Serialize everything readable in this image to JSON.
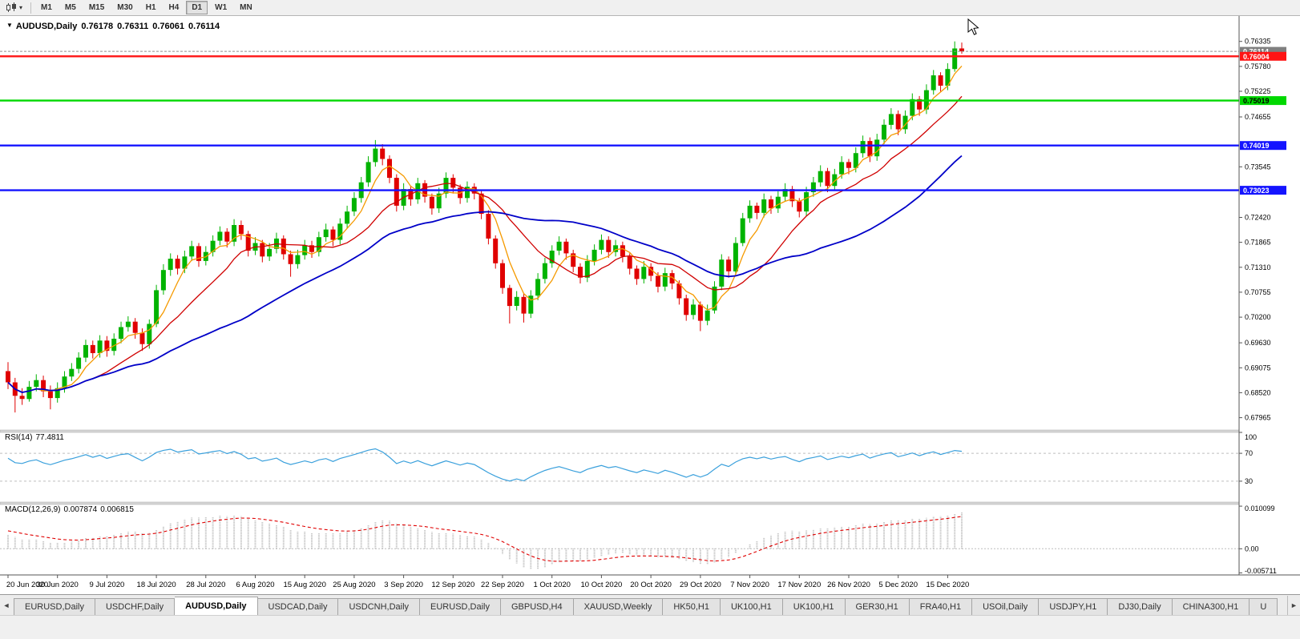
{
  "toolbar": {
    "chart_type_icon": "candlestick-chart-icon",
    "timeframes": [
      "M1",
      "M5",
      "M15",
      "M30",
      "H1",
      "H4",
      "D1",
      "W1",
      "MN"
    ],
    "active_timeframe": "D1"
  },
  "chart": {
    "title": {
      "symbol": "AUDUSD,Daily",
      "open": "0.76178",
      "high": "0.76311",
      "low": "0.76061",
      "close": "0.76114"
    },
    "bid_price": 0.76114,
    "price_axis_ticks": [
      "0.76335",
      "0.75780",
      "0.75225",
      "0.74655",
      "0.73545",
      "0.72420",
      "0.71865",
      "0.71310",
      "0.70755",
      "0.70200",
      "0.69630",
      "0.69075",
      "0.68520",
      "0.67965"
    ],
    "price_badges": [
      {
        "value": "0.76114",
        "color": "#7f7f7f",
        "text_color": "#ffffff",
        "kind": "bid-price"
      },
      {
        "value": "0.76004",
        "color": "#ff1414",
        "text_color": "#ffffff",
        "kind": "resistance-line"
      },
      {
        "value": "0.75019",
        "color": "#00d800",
        "text_color": "#000000",
        "kind": "support-line"
      },
      {
        "value": "0.74019",
        "color": "#1414ff",
        "text_color": "#ffffff",
        "kind": "support-line"
      },
      {
        "value": "0.73023",
        "color": "#1414ff",
        "text_color": "#ffffff",
        "kind": "support-line"
      }
    ],
    "hlines": [
      {
        "price": 0.76004,
        "color": "#ff1414"
      },
      {
        "price": 0.75019,
        "color": "#00d800"
      },
      {
        "price": 0.74019,
        "color": "#1414ff"
      },
      {
        "price": 0.73023,
        "color": "#1414ff"
      }
    ],
    "time_axis": [
      "20 Jun 2020",
      "30 Jun 2020",
      "9 Jul 2020",
      "18 Jul 2020",
      "28 Jul 2020",
      "6 Aug 2020",
      "15 Aug 2020",
      "25 Aug 2020",
      "3 Sep 2020",
      "12 Sep 2020",
      "22 Sep 2020",
      "1 Oct 2020",
      "10 Oct 2020",
      "20 Oct 2020",
      "29 Oct 2020",
      "7 Nov 2020",
      "17 Nov 2020",
      "26 Nov 2020",
      "5 Dec 2020",
      "15 Dec 2020"
    ]
  },
  "indicators": {
    "rsi": {
      "name": "RSI(14)",
      "value": "77.4811",
      "period": 14,
      "levels": [
        "100",
        "70",
        "30"
      ],
      "color": "#3aa0dc"
    },
    "macd": {
      "name": "MACD(12,26,9)",
      "main_value": "0.007874",
      "signal_value": "0.006815",
      "axis_labels": [
        "0.010099",
        "0.00",
        "-0.005711"
      ],
      "histogram_color": "#b8b8b8",
      "signal_color": "#e00000"
    }
  },
  "chart_data": {
    "type": "candlestick",
    "symbol": "AUDUSD",
    "timeframe": "Daily",
    "x_range": [
      "20 Jun 2020",
      "15 Dec 2020"
    ],
    "price_range_top": 0.769,
    "price_range_bottom": 0.6769,
    "up_color": "#00b300",
    "down_color": "#e00000",
    "moving_averages": [
      {
        "name": "fast",
        "period": 5,
        "color": "#f59a00"
      },
      {
        "name": "medium",
        "period": 13,
        "color": "#d00000"
      },
      {
        "name": "slow",
        "period": 34,
        "color": "#0000c8"
      }
    ],
    "candles": [
      [
        0.69,
        0.692,
        0.686,
        0.6875
      ],
      [
        0.6875,
        0.6885,
        0.6808,
        0.6845
      ],
      [
        0.6845,
        0.6862,
        0.6825,
        0.6838
      ],
      [
        0.6838,
        0.6878,
        0.6832,
        0.6865
      ],
      [
        0.6865,
        0.6893,
        0.6855,
        0.688
      ],
      [
        0.688,
        0.689,
        0.6842,
        0.6855
      ],
      [
        0.6855,
        0.6868,
        0.6815,
        0.684
      ],
      [
        0.684,
        0.6875,
        0.683,
        0.6862
      ],
      [
        0.6862,
        0.69,
        0.6852,
        0.6888
      ],
      [
        0.6888,
        0.6918,
        0.6878,
        0.6905
      ],
      [
        0.6905,
        0.6942,
        0.6895,
        0.693
      ],
      [
        0.693,
        0.697,
        0.692,
        0.6958
      ],
      [
        0.6958,
        0.6968,
        0.6928,
        0.694
      ],
      [
        0.694,
        0.698,
        0.693,
        0.6968
      ],
      [
        0.6968,
        0.6978,
        0.6932,
        0.6945
      ],
      [
        0.6945,
        0.6984,
        0.6935,
        0.6972
      ],
      [
        0.6972,
        0.701,
        0.6962,
        0.6998
      ],
      [
        0.6998,
        0.7022,
        0.6988,
        0.701
      ],
      [
        0.701,
        0.7018,
        0.6972,
        0.6985
      ],
      [
        0.6985,
        0.6995,
        0.6945,
        0.696
      ],
      [
        0.696,
        0.7015,
        0.695,
        0.7005
      ],
      [
        0.7005,
        0.7092,
        0.6998,
        0.708
      ],
      [
        0.708,
        0.7138,
        0.707,
        0.7125
      ],
      [
        0.7125,
        0.7162,
        0.7112,
        0.715
      ],
      [
        0.715,
        0.7158,
        0.7115,
        0.7128
      ],
      [
        0.7128,
        0.7168,
        0.7118,
        0.7155
      ],
      [
        0.7155,
        0.719,
        0.7145,
        0.7178
      ],
      [
        0.7178,
        0.7185,
        0.7132,
        0.7145
      ],
      [
        0.7145,
        0.7178,
        0.7135,
        0.7165
      ],
      [
        0.7165,
        0.7202,
        0.7155,
        0.719
      ],
      [
        0.719,
        0.7222,
        0.718,
        0.721
      ],
      [
        0.721,
        0.7218,
        0.7175,
        0.7188
      ],
      [
        0.7188,
        0.7238,
        0.7178,
        0.7225
      ],
      [
        0.7225,
        0.7235,
        0.7192,
        0.7205
      ],
      [
        0.7205,
        0.7212,
        0.7155,
        0.7168
      ],
      [
        0.7168,
        0.7198,
        0.7158,
        0.7185
      ],
      [
        0.7185,
        0.7192,
        0.7142,
        0.7155
      ],
      [
        0.7155,
        0.7185,
        0.7145,
        0.7172
      ],
      [
        0.7172,
        0.7208,
        0.7162,
        0.7195
      ],
      [
        0.7195,
        0.7202,
        0.7148,
        0.716
      ],
      [
        0.716,
        0.7168,
        0.711,
        0.7138
      ],
      [
        0.7138,
        0.717,
        0.7128,
        0.7158
      ],
      [
        0.7158,
        0.7192,
        0.7148,
        0.718
      ],
      [
        0.718,
        0.719,
        0.7152,
        0.7165
      ],
      [
        0.7165,
        0.721,
        0.7155,
        0.7198
      ],
      [
        0.7198,
        0.7228,
        0.7188,
        0.7215
      ],
      [
        0.7215,
        0.7222,
        0.7178,
        0.7192
      ],
      [
        0.7192,
        0.724,
        0.7182,
        0.7228
      ],
      [
        0.7228,
        0.7268,
        0.7218,
        0.7255
      ],
      [
        0.7255,
        0.7298,
        0.7245,
        0.7285
      ],
      [
        0.7285,
        0.7332,
        0.7275,
        0.732
      ],
      [
        0.732,
        0.7378,
        0.731,
        0.7365
      ],
      [
        0.7365,
        0.7414,
        0.7355,
        0.7395
      ],
      [
        0.7395,
        0.7405,
        0.7358,
        0.7372
      ],
      [
        0.7372,
        0.738,
        0.7318,
        0.733
      ],
      [
        0.733,
        0.7338,
        0.7255,
        0.7268
      ],
      [
        0.7268,
        0.7318,
        0.7258,
        0.7305
      ],
      [
        0.7305,
        0.7312,
        0.7268,
        0.7282
      ],
      [
        0.7282,
        0.733,
        0.7272,
        0.7318
      ],
      [
        0.7318,
        0.7325,
        0.7275,
        0.7288
      ],
      [
        0.7288,
        0.7295,
        0.7248,
        0.7262
      ],
      [
        0.7262,
        0.7308,
        0.7252,
        0.7295
      ],
      [
        0.7295,
        0.7342,
        0.7285,
        0.733
      ],
      [
        0.733,
        0.7338,
        0.7295,
        0.7308
      ],
      [
        0.7308,
        0.7315,
        0.7272,
        0.7285
      ],
      [
        0.7285,
        0.7322,
        0.7275,
        0.731
      ],
      [
        0.731,
        0.7318,
        0.7282,
        0.7295
      ],
      [
        0.7295,
        0.7302,
        0.7238,
        0.725
      ],
      [
        0.725,
        0.7258,
        0.7182,
        0.7195
      ],
      [
        0.7195,
        0.7202,
        0.7128,
        0.714
      ],
      [
        0.714,
        0.7148,
        0.7072,
        0.7085
      ],
      [
        0.7085,
        0.7092,
        0.7006,
        0.7045
      ],
      [
        0.7045,
        0.7078,
        0.7035,
        0.7065
      ],
      [
        0.7065,
        0.7072,
        0.7008,
        0.7028
      ],
      [
        0.7028,
        0.708,
        0.7018,
        0.7068
      ],
      [
        0.7068,
        0.7118,
        0.7058,
        0.7105
      ],
      [
        0.7105,
        0.7152,
        0.7095,
        0.714
      ],
      [
        0.714,
        0.718,
        0.713,
        0.7168
      ],
      [
        0.7168,
        0.72,
        0.7158,
        0.7188
      ],
      [
        0.7188,
        0.7195,
        0.7148,
        0.7162
      ],
      [
        0.7162,
        0.717,
        0.712,
        0.7132
      ],
      [
        0.7132,
        0.714,
        0.7095,
        0.7108
      ],
      [
        0.7108,
        0.7158,
        0.7098,
        0.7145
      ],
      [
        0.7145,
        0.7182,
        0.7135,
        0.717
      ],
      [
        0.717,
        0.7204,
        0.716,
        0.7192
      ],
      [
        0.7192,
        0.72,
        0.7152,
        0.7165
      ],
      [
        0.7165,
        0.7192,
        0.7155,
        0.718
      ],
      [
        0.718,
        0.7188,
        0.7142,
        0.7155
      ],
      [
        0.7155,
        0.7162,
        0.7115,
        0.7128
      ],
      [
        0.7128,
        0.7135,
        0.7092,
        0.7105
      ],
      [
        0.7105,
        0.7145,
        0.7095,
        0.7132
      ],
      [
        0.7132,
        0.714,
        0.71,
        0.7112
      ],
      [
        0.7112,
        0.712,
        0.7075,
        0.7088
      ],
      [
        0.7088,
        0.713,
        0.7078,
        0.7118
      ],
      [
        0.7118,
        0.7125,
        0.7082,
        0.7095
      ],
      [
        0.7095,
        0.7102,
        0.7048,
        0.7062
      ],
      [
        0.7062,
        0.707,
        0.7012,
        0.7025
      ],
      [
        0.7025,
        0.706,
        0.7015,
        0.7048
      ],
      [
        0.7048,
        0.7055,
        0.6989,
        0.7012
      ],
      [
        0.7012,
        0.7048,
        0.7002,
        0.7035
      ],
      [
        0.7035,
        0.71,
        0.7028,
        0.7088
      ],
      [
        0.7088,
        0.716,
        0.708,
        0.7148
      ],
      [
        0.7148,
        0.7155,
        0.7108,
        0.7122
      ],
      [
        0.7122,
        0.7198,
        0.7115,
        0.7185
      ],
      [
        0.7185,
        0.7252,
        0.7178,
        0.724
      ],
      [
        0.724,
        0.728,
        0.723,
        0.7268
      ],
      [
        0.7268,
        0.7275,
        0.7238,
        0.7252
      ],
      [
        0.7252,
        0.7295,
        0.7242,
        0.7282
      ],
      [
        0.7282,
        0.729,
        0.725,
        0.7262
      ],
      [
        0.7262,
        0.73,
        0.7252,
        0.7288
      ],
      [
        0.7288,
        0.7318,
        0.7278,
        0.7305
      ],
      [
        0.7305,
        0.7312,
        0.7265,
        0.7278
      ],
      [
        0.7278,
        0.7285,
        0.7242,
        0.7255
      ],
      [
        0.7255,
        0.731,
        0.7245,
        0.7298
      ],
      [
        0.7298,
        0.7332,
        0.7288,
        0.732
      ],
      [
        0.732,
        0.7358,
        0.731,
        0.7345
      ],
      [
        0.7345,
        0.7352,
        0.7298,
        0.7312
      ],
      [
        0.7312,
        0.735,
        0.7302,
        0.7338
      ],
      [
        0.7338,
        0.7378,
        0.7328,
        0.7365
      ],
      [
        0.7365,
        0.7372,
        0.7338,
        0.7352
      ],
      [
        0.7352,
        0.7398,
        0.7342,
        0.7385
      ],
      [
        0.7385,
        0.7424,
        0.7375,
        0.7412
      ],
      [
        0.7412,
        0.742,
        0.7365,
        0.7378
      ],
      [
        0.7378,
        0.7428,
        0.7368,
        0.7415
      ],
      [
        0.7415,
        0.746,
        0.7405,
        0.7448
      ],
      [
        0.7448,
        0.7485,
        0.7438,
        0.7472
      ],
      [
        0.7472,
        0.748,
        0.7425,
        0.7438
      ],
      [
        0.7438,
        0.748,
        0.7428,
        0.7468
      ],
      [
        0.7468,
        0.7518,
        0.7458,
        0.7505
      ],
      [
        0.7505,
        0.7512,
        0.7468,
        0.7482
      ],
      [
        0.7482,
        0.7538,
        0.7472,
        0.7525
      ],
      [
        0.7525,
        0.757,
        0.7515,
        0.7558
      ],
      [
        0.7558,
        0.7565,
        0.7522,
        0.7535
      ],
      [
        0.7535,
        0.7585,
        0.7525,
        0.7572
      ],
      [
        0.7572,
        0.76335,
        0.7566,
        0.76178
      ],
      [
        0.76178,
        0.76311,
        0.76061,
        0.76114
      ]
    ]
  },
  "tabs": {
    "scroll_left": "◄",
    "scroll_right": "►",
    "active_index": 2,
    "items": [
      "EURUSD,Daily",
      "USDCHF,Daily",
      "AUDUSD,Daily",
      "USDCAD,Daily",
      "USDCNH,Daily",
      "EURUSD,Daily",
      "GBPUSD,H4",
      "XAUUSD,Weekly",
      "HK50,H1",
      "UK100,H1",
      "UK100,H1",
      "GER30,H1",
      "FRA40,H1",
      "USOil,Daily",
      "USDJPY,H1",
      "DJ30,Daily",
      "CHINA300,H1",
      "U"
    ]
  }
}
